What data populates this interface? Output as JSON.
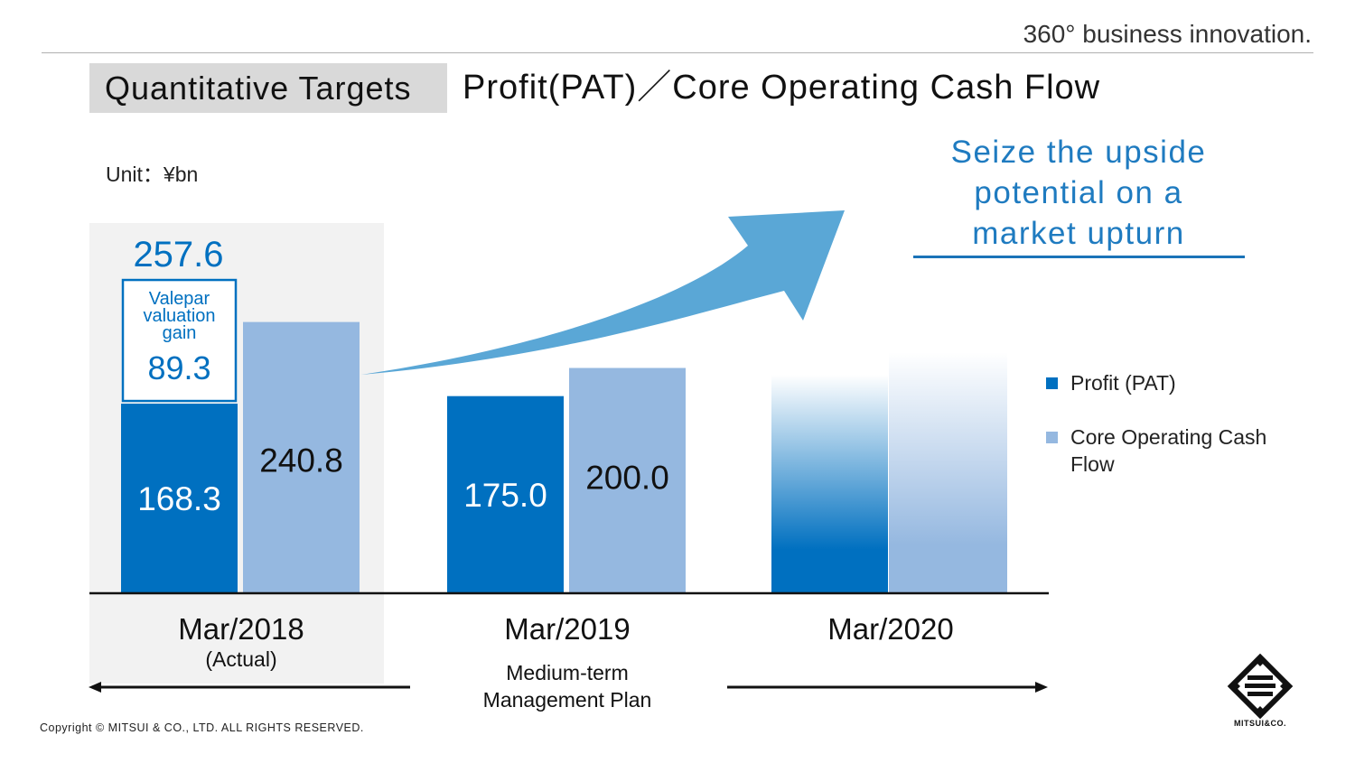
{
  "header": {
    "slogan": "360° business innovation.",
    "title_tag": "Quantitative Targets",
    "title": "Profit(PAT)／Core Operating Cash Flow"
  },
  "unit_label": "Unit：¥bn",
  "callout": {
    "line1": "Seize the upside",
    "line2": "potential on a",
    "line3": "market upturn"
  },
  "legend": [
    {
      "label": "Profit (PAT)",
      "color": "#0070c0"
    },
    {
      "label": "Core Operating Cash Flow",
      "color": "#95b8e0"
    }
  ],
  "plan_label_line1": "Medium-term",
  "plan_label_line2": "Management Plan",
  "copyright": "Copyright © MITSUI & CO., LTD. ALL RIGHTS RESERVED.",
  "logo_text": "MITSUI&CO.",
  "colors": {
    "profit": "#0070c0",
    "cash_flow": "#95b8e0",
    "actual_bg": "#f2f2f2",
    "arrow": "#5aa7d6",
    "accent": "#1f7bc0"
  },
  "chart_data": {
    "type": "bar",
    "categories": [
      "Mar/2018",
      "Mar/2019",
      "Mar/2020"
    ],
    "category_sublabels": [
      "(Actual)",
      "",
      ""
    ],
    "ylim": [
      0,
      300
    ],
    "series": [
      {
        "name": "Profit (PAT)",
        "values": [
          168.3,
          175.0,
          null
        ],
        "labels": [
          "168.3",
          "175.0",
          ""
        ]
      },
      {
        "name": "Core Operating Cash Flow",
        "values": [
          240.8,
          200.0,
          null
        ],
        "labels": [
          "240.8",
          "200.0",
          ""
        ]
      }
    ],
    "stacked_extra": {
      "category": "Mar/2018",
      "series": "Profit (PAT)",
      "label_lines": [
        "Valepar",
        "valuation",
        "gain"
      ],
      "value": 89.3,
      "value_label": "89.3",
      "total": 257.6,
      "total_label": "257.6"
    },
    "annotation": "Seize the upside potential on a market upturn"
  }
}
